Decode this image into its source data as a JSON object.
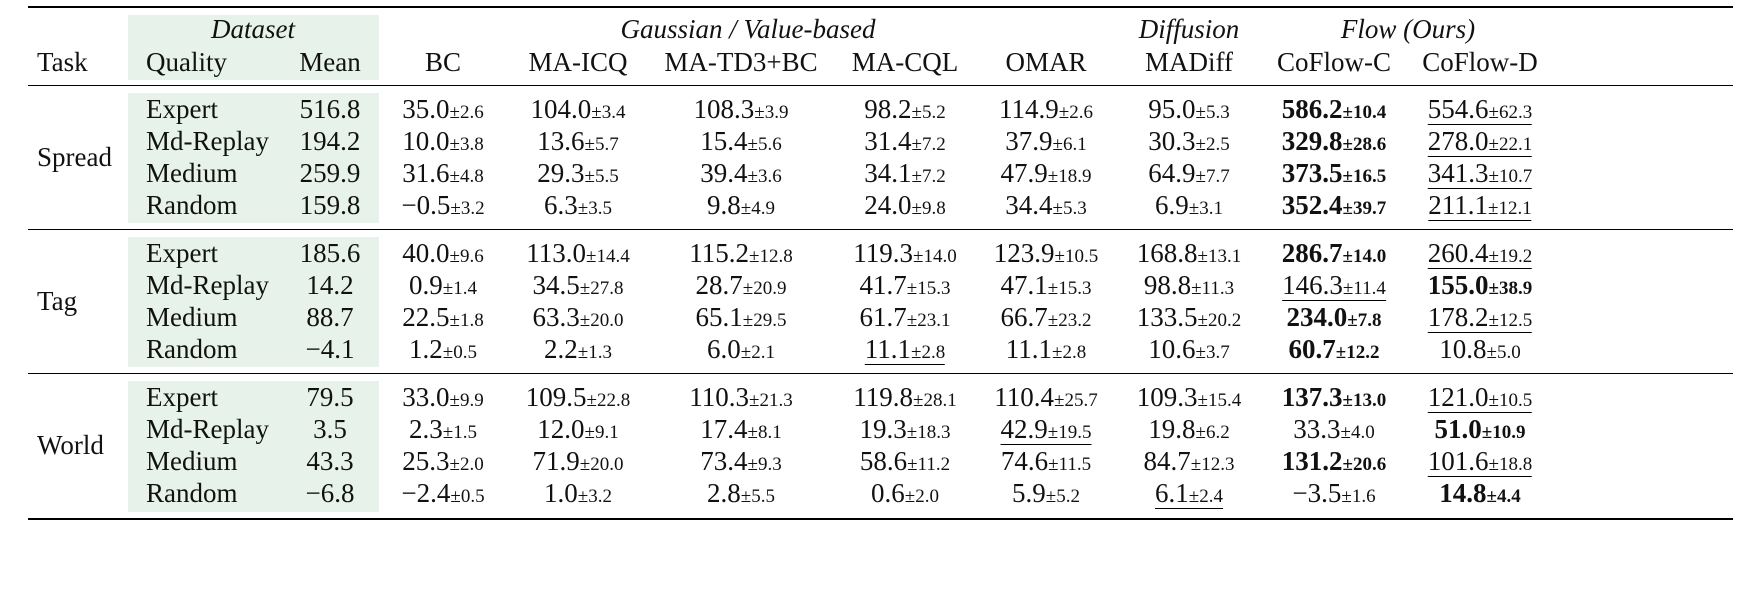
{
  "header": {
    "groups": {
      "dataset": "Dataset",
      "gaussian": "Gaussian / Value-based",
      "diffusion": "Diffusion",
      "flow": "Flow (Ours)"
    },
    "columns": {
      "task": "Task",
      "quality": "Quality",
      "mean": "Mean",
      "bc": "BC",
      "maicq": "MA-ICQ",
      "matd3bc": "MA-TD3+BC",
      "macql": "MA-CQL",
      "omar": "OMAR",
      "madiff": "MADiff",
      "coflowc": "CoFlow-C",
      "coflowd": "CoFlow-D"
    }
  },
  "tasks": [
    {
      "name": "Spread",
      "rows": [
        {
          "quality": "Expert",
          "mean": "516.8",
          "cells": [
            {
              "v": "35.0",
              "s": "±2.6"
            },
            {
              "v": "104.0",
              "s": "±3.4"
            },
            {
              "v": "108.3",
              "s": "±3.9"
            },
            {
              "v": "98.2",
              "s": "±5.2"
            },
            {
              "v": "114.9",
              "s": "±2.6"
            },
            {
              "v": "95.0",
              "s": "±5.3"
            },
            {
              "v": "586.2",
              "s": "±10.4",
              "bold": true
            },
            {
              "v": "554.6",
              "s": "±62.3",
              "ul": true
            }
          ]
        },
        {
          "quality": "Md-Replay",
          "mean": "194.2",
          "cells": [
            {
              "v": "10.0",
              "s": "±3.8"
            },
            {
              "v": "13.6",
              "s": "±5.7"
            },
            {
              "v": "15.4",
              "s": "±5.6"
            },
            {
              "v": "31.4",
              "s": "±7.2"
            },
            {
              "v": "37.9",
              "s": "±6.1"
            },
            {
              "v": "30.3",
              "s": "±2.5"
            },
            {
              "v": "329.8",
              "s": "±28.6",
              "bold": true
            },
            {
              "v": "278.0",
              "s": "±22.1",
              "ul": true
            }
          ]
        },
        {
          "quality": "Medium",
          "mean": "259.9",
          "cells": [
            {
              "v": "31.6",
              "s": "±4.8"
            },
            {
              "v": "29.3",
              "s": "±5.5"
            },
            {
              "v": "39.4",
              "s": "±3.6"
            },
            {
              "v": "34.1",
              "s": "±7.2"
            },
            {
              "v": "47.9",
              "s": "±18.9"
            },
            {
              "v": "64.9",
              "s": "±7.7"
            },
            {
              "v": "373.5",
              "s": "±16.5",
              "bold": true
            },
            {
              "v": "341.3",
              "s": "±10.7",
              "ul": true
            }
          ]
        },
        {
          "quality": "Random",
          "mean": "159.8",
          "cells": [
            {
              "v": "−0.5",
              "s": "±3.2"
            },
            {
              "v": "6.3",
              "s": "±3.5"
            },
            {
              "v": "9.8",
              "s": "±4.9"
            },
            {
              "v": "24.0",
              "s": "±9.8"
            },
            {
              "v": "34.4",
              "s": "±5.3"
            },
            {
              "v": "6.9",
              "s": "±3.1"
            },
            {
              "v": "352.4",
              "s": "±39.7",
              "bold": true
            },
            {
              "v": "211.1",
              "s": "±12.1",
              "ul": true
            }
          ]
        }
      ]
    },
    {
      "name": "Tag",
      "rows": [
        {
          "quality": "Expert",
          "mean": "185.6",
          "cells": [
            {
              "v": "40.0",
              "s": "±9.6"
            },
            {
              "v": "113.0",
              "s": "±14.4"
            },
            {
              "v": "115.2",
              "s": "±12.8"
            },
            {
              "v": "119.3",
              "s": "±14.0"
            },
            {
              "v": "123.9",
              "s": "±10.5"
            },
            {
              "v": "168.8",
              "s": "±13.1"
            },
            {
              "v": "286.7",
              "s": "±14.0",
              "bold": true
            },
            {
              "v": "260.4",
              "s": "±19.2",
              "ul": true
            }
          ]
        },
        {
          "quality": "Md-Replay",
          "mean": "14.2",
          "cells": [
            {
              "v": "0.9",
              "s": "±1.4"
            },
            {
              "v": "34.5",
              "s": "±27.8"
            },
            {
              "v": "28.7",
              "s": "±20.9"
            },
            {
              "v": "41.7",
              "s": "±15.3"
            },
            {
              "v": "47.1",
              "s": "±15.3"
            },
            {
              "v": "98.8",
              "s": "±11.3"
            },
            {
              "v": "146.3",
              "s": "±11.4",
              "ul": true
            },
            {
              "v": "155.0",
              "s": "±38.9",
              "bold": true
            }
          ]
        },
        {
          "quality": "Medium",
          "mean": "88.7",
          "cells": [
            {
              "v": "22.5",
              "s": "±1.8"
            },
            {
              "v": "63.3",
              "s": "±20.0"
            },
            {
              "v": "65.1",
              "s": "±29.5"
            },
            {
              "v": "61.7",
              "s": "±23.1"
            },
            {
              "v": "66.7",
              "s": "±23.2"
            },
            {
              "v": "133.5",
              "s": "±20.2"
            },
            {
              "v": "234.0",
              "s": "±7.8",
              "bold": true
            },
            {
              "v": "178.2",
              "s": "±12.5",
              "ul": true
            }
          ]
        },
        {
          "quality": "Random",
          "mean": "−4.1",
          "cells": [
            {
              "v": "1.2",
              "s": "±0.5"
            },
            {
              "v": "2.2",
              "s": "±1.3"
            },
            {
              "v": "6.0",
              "s": "±2.1"
            },
            {
              "v": "11.1",
              "s": "±2.8",
              "ul": true
            },
            {
              "v": "11.1",
              "s": "±2.8"
            },
            {
              "v": "10.6",
              "s": "±3.7"
            },
            {
              "v": "60.7",
              "s": "±12.2",
              "bold": true
            },
            {
              "v": "10.8",
              "s": "±5.0"
            }
          ]
        }
      ]
    },
    {
      "name": "World",
      "rows": [
        {
          "quality": "Expert",
          "mean": "79.5",
          "cells": [
            {
              "v": "33.0",
              "s": "±9.9"
            },
            {
              "v": "109.5",
              "s": "±22.8"
            },
            {
              "v": "110.3",
              "s": "±21.3"
            },
            {
              "v": "119.8",
              "s": "±28.1"
            },
            {
              "v": "110.4",
              "s": "±25.7"
            },
            {
              "v": "109.3",
              "s": "±15.4"
            },
            {
              "v": "137.3",
              "s": "±13.0",
              "bold": true
            },
            {
              "v": "121.0",
              "s": "±10.5",
              "ul": true
            }
          ]
        },
        {
          "quality": "Md-Replay",
          "mean": "3.5",
          "cells": [
            {
              "v": "2.3",
              "s": "±1.5"
            },
            {
              "v": "12.0",
              "s": "±9.1"
            },
            {
              "v": "17.4",
              "s": "±8.1"
            },
            {
              "v": "19.3",
              "s": "±18.3"
            },
            {
              "v": "42.9",
              "s": "±19.5",
              "ul": true
            },
            {
              "v": "19.8",
              "s": "±6.2"
            },
            {
              "v": "33.3",
              "s": "±4.0"
            },
            {
              "v": "51.0",
              "s": "±10.9",
              "bold": true
            }
          ]
        },
        {
          "quality": "Medium",
          "mean": "43.3",
          "cells": [
            {
              "v": "25.3",
              "s": "±2.0"
            },
            {
              "v": "71.9",
              "s": "±20.0"
            },
            {
              "v": "73.4",
              "s": "±9.3"
            },
            {
              "v": "58.6",
              "s": "±11.2"
            },
            {
              "v": "74.6",
              "s": "±11.5"
            },
            {
              "v": "84.7",
              "s": "±12.3"
            },
            {
              "v": "131.2",
              "s": "±20.6",
              "bold": true
            },
            {
              "v": "101.6",
              "s": "±18.8",
              "ul": true
            }
          ]
        },
        {
          "quality": "Random",
          "mean": "−6.8",
          "cells": [
            {
              "v": "−2.4",
              "s": "±0.5"
            },
            {
              "v": "1.0",
              "s": "±3.2"
            },
            {
              "v": "2.8",
              "s": "±5.5"
            },
            {
              "v": "0.6",
              "s": "±2.0"
            },
            {
              "v": "5.9",
              "s": "±5.2"
            },
            {
              "v": "6.1",
              "s": "±2.4",
              "ul": true
            },
            {
              "v": "−3.5",
              "s": "±1.6"
            },
            {
              "v": "14.8",
              "s": "±4.4",
              "bold": true
            }
          ]
        }
      ]
    }
  ]
}
